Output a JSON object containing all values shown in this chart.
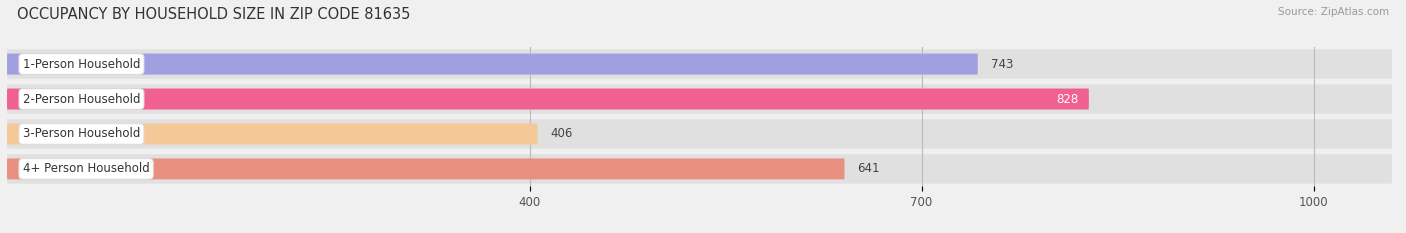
{
  "categories": [
    "1-Person Household",
    "2-Person Household",
    "3-Person Household",
    "4+ Person Household"
  ],
  "values": [
    743,
    828,
    406,
    641
  ],
  "bar_colors": [
    "#a0a0e0",
    "#f06090",
    "#f5c898",
    "#e89080"
  ],
  "value_label_colors": [
    "#555555",
    "#ffffff",
    "#555555",
    "#555555"
  ],
  "title": "OCCUPANCY BY HOUSEHOLD SIZE IN ZIP CODE 81635",
  "source": "Source: ZipAtlas.com",
  "xlim": [
    0,
    1060
  ],
  "xmin": 0,
  "xticks": [
    400,
    700,
    1000
  ],
  "title_fontsize": 10.5,
  "label_fontsize": 8.5,
  "value_fontsize": 8.5,
  "bg_color": "#f0f0f0",
  "bar_bg_color": "#e4e4e4",
  "row_bg_color": "#e0e0e0"
}
